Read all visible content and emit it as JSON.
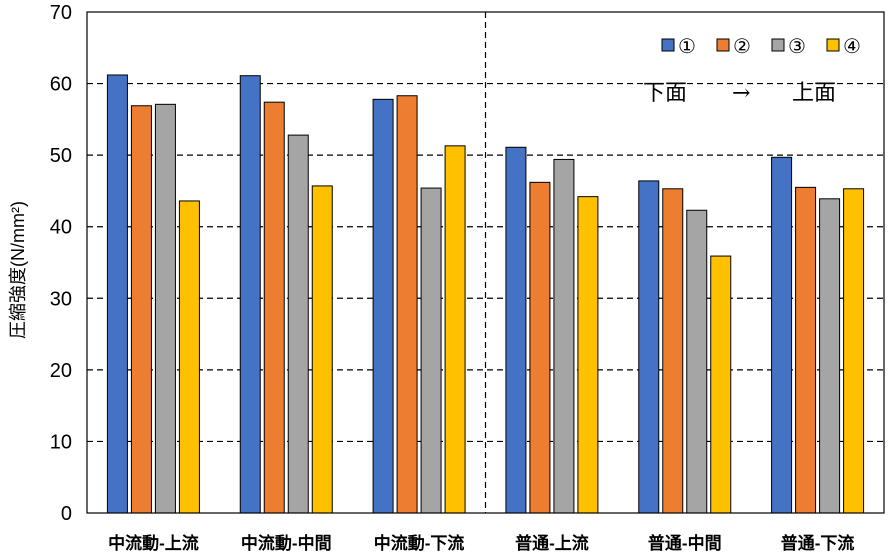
{
  "chart_data": {
    "type": "bar",
    "title": "",
    "xlabel": "",
    "ylabel": "圧縮強度(N/mm²)",
    "ylim": [
      0,
      70
    ],
    "yticks": [
      0,
      10,
      20,
      30,
      40,
      50,
      60,
      70
    ],
    "grid": true,
    "legend_position": "top-right",
    "categories": [
      "中流動-上流",
      "中流動-中間",
      "中流動-下流",
      "普通-上流",
      "普通-中間",
      "普通-下流"
    ],
    "series": [
      {
        "name": "①",
        "color": "#4472C4",
        "values": [
          61.2,
          61.1,
          57.8,
          51.1,
          46.4,
          49.7
        ]
      },
      {
        "name": "②",
        "color": "#ED7D31",
        "values": [
          56.9,
          57.4,
          58.3,
          46.2,
          45.3,
          45.5
        ]
      },
      {
        "name": "③",
        "color": "#A5A5A5",
        "values": [
          57.1,
          52.8,
          45.4,
          49.4,
          42.3,
          43.9
        ]
      },
      {
        "name": "④",
        "color": "#FFC000",
        "values": [
          43.6,
          45.7,
          51.3,
          44.2,
          35.9,
          45.3
        ]
      }
    ],
    "annotation": {
      "from": "下面",
      "arrow": "→",
      "to": "上面"
    }
  }
}
